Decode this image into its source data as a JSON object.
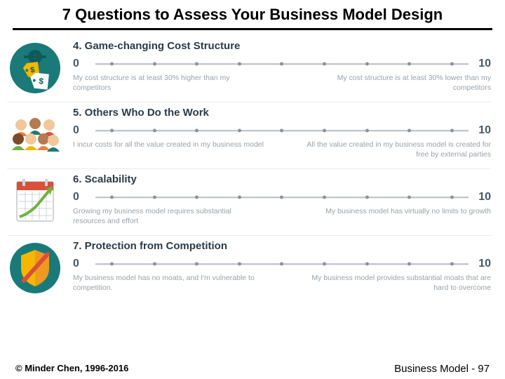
{
  "title": "7 Questions to Assess Your Business Model Design",
  "colors": {
    "title_text": "#000000",
    "title_underline": "#000000",
    "question_title": "#2a3b4a",
    "scale_number": "#475966",
    "scale_line": "#b7bdc3",
    "scale_dot": "#8a939b",
    "caption_text": "#98a2aa",
    "row_divider": "#ececec",
    "background": "#ffffff"
  },
  "scale": {
    "min_label": "0",
    "max_label": "10",
    "dot_count": 9
  },
  "questions": [
    {
      "id": "cost-structure",
      "number": "4.",
      "title": "Game-changing Cost Structure",
      "left_caption": "My cost structure is at least 30% higher than my competitors",
      "right_caption": "My cost structure is at least 30% lower than my competitors",
      "icon": "price-tags"
    },
    {
      "id": "others-work",
      "number": "5.",
      "title": "Others Who Do the Work",
      "left_caption": "I incur costs for all the value created in my business model",
      "right_caption": "All the value created in my business model is created for free by external parties",
      "icon": "people"
    },
    {
      "id": "scalability",
      "number": "6.",
      "title": "Scalability",
      "left_caption": "Growing my business model requires substantial resources and effort",
      "right_caption": "My business model has virtually no limits to growth",
      "icon": "growth-chart"
    },
    {
      "id": "protection",
      "number": "7.",
      "title": "Protection from Competition",
      "left_caption": "My business model has no moats, and I'm vulnerable to competition.",
      "right_caption": "My business model provides substantial moats that are hard to overcome",
      "icon": "shield"
    }
  ],
  "footer": {
    "copyright": "© Minder Chen, 1996-2016",
    "page": "Business Model - 97"
  },
  "icon_palette": {
    "teal": "#1a7a7a",
    "teal_dark": "#0f5a5a",
    "yellow": "#f5b700",
    "orange": "#e8833a",
    "red": "#d94f3a",
    "green": "#6fb23f",
    "white": "#ffffff",
    "skin1": "#f2c89a",
    "skin2": "#b37b50",
    "skin3": "#7a4a2b",
    "gray": "#cfd4d8"
  }
}
